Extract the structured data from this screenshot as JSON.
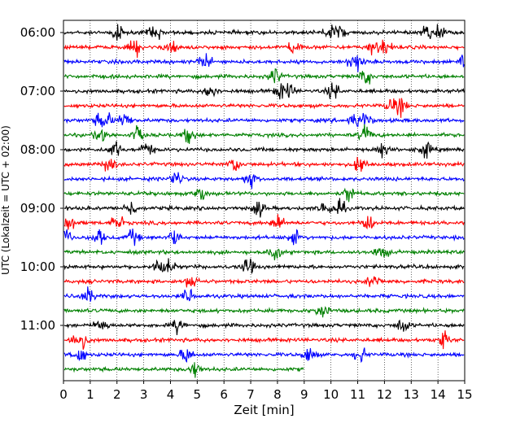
{
  "chart_data": {
    "type": "line",
    "title": "",
    "xlabel": "Zeit  [min]",
    "ylabel": "UTC (Lokalzeit = UTC + 02:00)",
    "xlim": [
      0,
      15
    ],
    "x_ticks": [
      0,
      1,
      2,
      3,
      4,
      5,
      6,
      7,
      8,
      9,
      10,
      11,
      12,
      13,
      14,
      15
    ],
    "x_tick_labels": [
      "0",
      "1",
      "2",
      "3",
      "4",
      "5",
      "6",
      "7",
      "8",
      "9",
      "10",
      "11",
      "12",
      "13",
      "14",
      "15"
    ],
    "y_ticks": [
      "06:00",
      "07:00",
      "08:00",
      "09:00",
      "10:00",
      "11:00"
    ],
    "grid": "vertical dotted lines at each minute",
    "trace_minutes": 15,
    "row_colors": [
      "#000000",
      "#ff0000",
      "#0000ff",
      "#008000"
    ],
    "rows": [
      {
        "start": "06:00",
        "end_min": 15,
        "spikes": [
          2.0,
          3.4,
          9.9,
          10.3,
          13.6,
          14.0
        ]
      },
      {
        "start": "06:15",
        "end_min": 15,
        "spikes": [
          2.7,
          4.0,
          8.6,
          11.6,
          12.0
        ]
      },
      {
        "start": "06:30",
        "end_min": 15,
        "spikes": [
          5.3,
          10.8,
          11.0,
          15.0
        ]
      },
      {
        "start": "06:45",
        "end_min": 15,
        "spikes": [
          7.9,
          11.3
        ]
      },
      {
        "start": "07:00",
        "end_min": 15,
        "spikes": [
          5.5,
          8.1,
          8.4,
          10.1
        ]
      },
      {
        "start": "07:15",
        "end_min": 15,
        "spikes": [
          12.3,
          12.6
        ]
      },
      {
        "start": "07:30",
        "end_min": 15,
        "spikes": [
          1.4,
          1.6,
          11.3,
          10.9,
          2.3
        ]
      },
      {
        "start": "07:45",
        "end_min": 15,
        "spikes": [
          1.4,
          2.8,
          4.7,
          11.3
        ]
      },
      {
        "start": "08:00",
        "end_min": 15,
        "spikes": [
          1.9,
          3.1,
          11.9,
          13.5
        ]
      },
      {
        "start": "08:15",
        "end_min": 15,
        "spikes": [
          1.7,
          6.4,
          11.1
        ]
      },
      {
        "start": "08:30",
        "end_min": 15,
        "spikes": [
          4.2,
          7.0
        ]
      },
      {
        "start": "08:45",
        "end_min": 15,
        "spikes": [
          5.1,
          10.7
        ]
      },
      {
        "start": "09:00",
        "end_min": 15,
        "spikes": [
          2.5,
          7.3,
          9.8,
          10.3
        ]
      },
      {
        "start": "09:15",
        "end_min": 15,
        "spikes": [
          0.2,
          2.0,
          8.0,
          11.4
        ]
      },
      {
        "start": "09:30",
        "end_min": 15,
        "spikes": [
          0.1,
          1.3,
          2.6,
          4.1,
          8.6
        ]
      },
      {
        "start": "09:45",
        "end_min": 15,
        "spikes": [
          7.9,
          11.9
        ]
      },
      {
        "start": "10:00",
        "end_min": 15,
        "spikes": [
          3.6,
          3.9,
          6.9
        ]
      },
      {
        "start": "10:15",
        "end_min": 15,
        "spikes": [
          4.8,
          11.6
        ]
      },
      {
        "start": "10:30",
        "end_min": 15,
        "spikes": [
          0.9,
          4.7
        ]
      },
      {
        "start": "10:45",
        "end_min": 15,
        "spikes": [
          9.7
        ]
      },
      {
        "start": "11:00",
        "end_min": 15,
        "spikes": [
          1.4,
          4.3,
          12.7
        ]
      },
      {
        "start": "11:15",
        "end_min": 15,
        "spikes": [
          0.5,
          0.7,
          14.2
        ]
      },
      {
        "start": "11:30",
        "end_min": 15,
        "spikes": [
          0.6,
          4.6,
          9.2,
          11.1
        ]
      },
      {
        "start": "11:45",
        "end_min": 9,
        "spikes": [
          4.9
        ]
      }
    ]
  }
}
